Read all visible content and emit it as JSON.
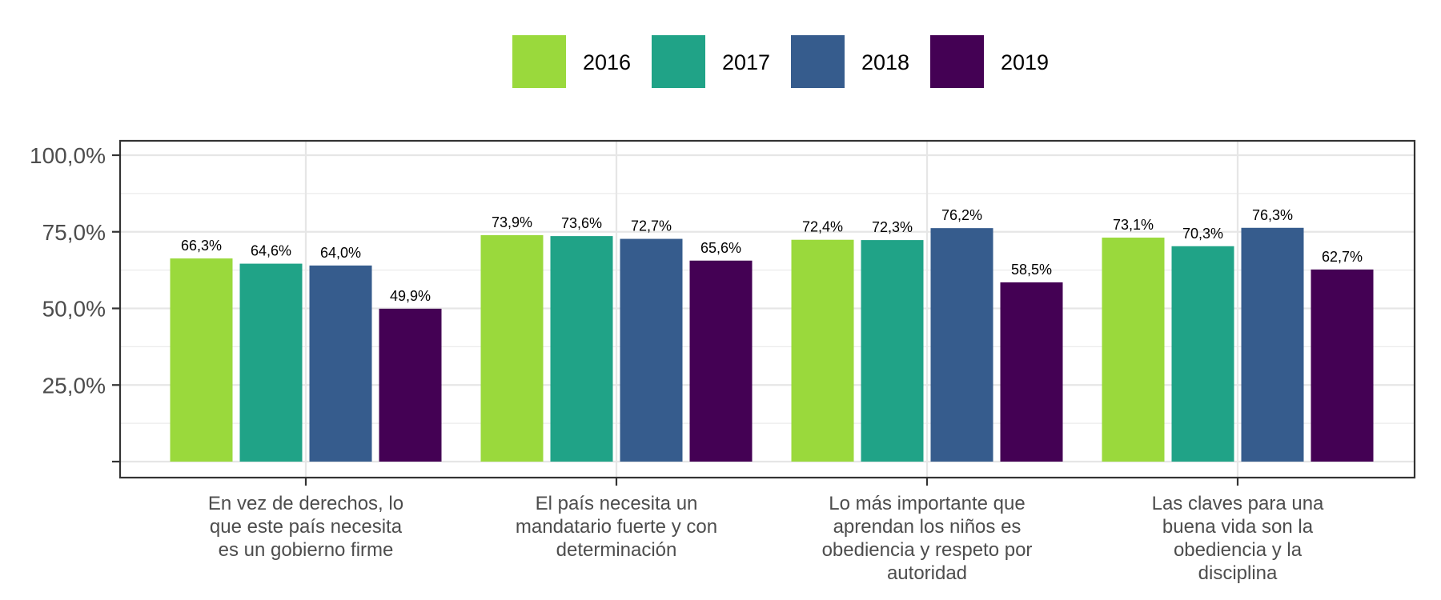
{
  "chart_data": {
    "type": "bar",
    "title": "",
    "xlabel": "",
    "ylabel": "",
    "ylim": [
      0,
      100
    ],
    "y_ticks": [
      {
        "value": 25,
        "label": "25,0%"
      },
      {
        "value": 50,
        "label": "50,0%"
      },
      {
        "value": 75,
        "label": "75,0%"
      },
      {
        "value": 100,
        "label": "100,0%"
      }
    ],
    "grid": true,
    "legend_position": "top",
    "categories": [
      [
        "En vez de derechos, lo",
        "que este país necesita",
        "es un gobierno firme"
      ],
      [
        "El país necesita un",
        "mandatario fuerte y con",
        "determinación"
      ],
      [
        "Lo más importante que",
        "aprendan los niños es",
        "obediencia y respeto por",
        "autoridad"
      ],
      [
        "Las claves para una",
        "buena vida son la",
        "obediencia y la",
        "disciplina"
      ]
    ],
    "series": [
      {
        "name": "2016",
        "color": "#9ad93c",
        "values": [
          66.3,
          73.9,
          72.4,
          73.1
        ],
        "labels": [
          "66,3%",
          "73,9%",
          "72,4%",
          "73,1%"
        ]
      },
      {
        "name": "2017",
        "color": "#20a387",
        "values": [
          64.6,
          73.6,
          72.3,
          70.3
        ],
        "labels": [
          "64,6%",
          "73,6%",
          "72,3%",
          "70,3%"
        ]
      },
      {
        "name": "2018",
        "color": "#365c8d",
        "values": [
          64.0,
          72.7,
          76.2,
          76.3
        ],
        "labels": [
          "64,0%",
          "72,7%",
          "76,2%",
          "76,3%"
        ]
      },
      {
        "name": "2019",
        "color": "#440154",
        "values": [
          49.9,
          65.6,
          58.5,
          62.7
        ],
        "labels": [
          "49,9%",
          "65,6%",
          "58,5%",
          "62,7%"
        ]
      }
    ]
  }
}
